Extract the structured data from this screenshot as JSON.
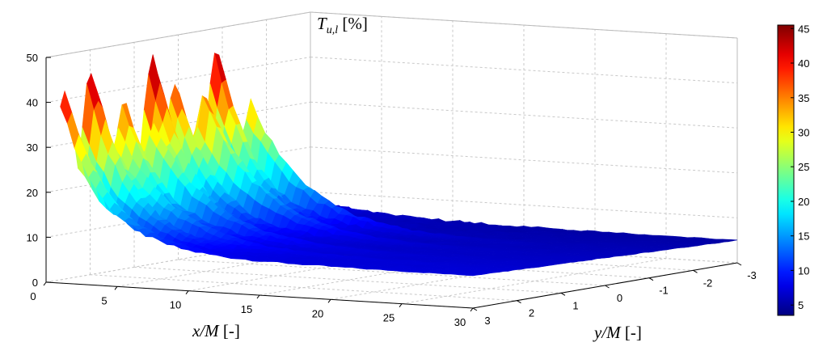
{
  "chart_data": {
    "type": "surface3d",
    "zlabel": {
      "main": "T",
      "sub": "u,l",
      "unit": " [%]"
    },
    "xlabel": {
      "main": "x/M",
      "unit": " [-]"
    },
    "ylabel": {
      "main": "y/M",
      "unit": " [-]"
    },
    "x_ticks": [
      "0",
      "5",
      "10",
      "15",
      "20",
      "25",
      "30"
    ],
    "y_ticks": [
      "3",
      "2",
      "1",
      "0",
      "-1",
      "-2",
      "-3"
    ],
    "z_ticks": [
      "0",
      "10",
      "20",
      "30",
      "40",
      "50"
    ],
    "xlim": [
      0,
      30
    ],
    "ylim": [
      -3,
      3
    ],
    "zlim": [
      0,
      50
    ],
    "grid": true,
    "colormap": "jet",
    "colorbar": {
      "ticks": [
        "5",
        "10",
        "15",
        "20",
        "25",
        "30",
        "35",
        "40",
        "45"
      ],
      "range": [
        3.5,
        45.5
      ]
    },
    "peaks_at_x1": [
      {
        "y": 2.9,
        "z": 43
      },
      {
        "y": 2.3,
        "z": 46
      },
      {
        "y": 1.55,
        "z": 38
      },
      {
        "y": 0.9,
        "z": 47
      },
      {
        "y": 0.4,
        "z": 40
      },
      {
        "y": -0.55,
        "z": 46
      }
    ],
    "midwall_crests": [
      {
        "y": 2.0,
        "z": 27
      },
      {
        "y": 1.2,
        "z": 28
      },
      {
        "y": 0.05,
        "z": 33
      },
      {
        "y": -1.0,
        "z": 30
      }
    ],
    "floor_min": 5
  }
}
